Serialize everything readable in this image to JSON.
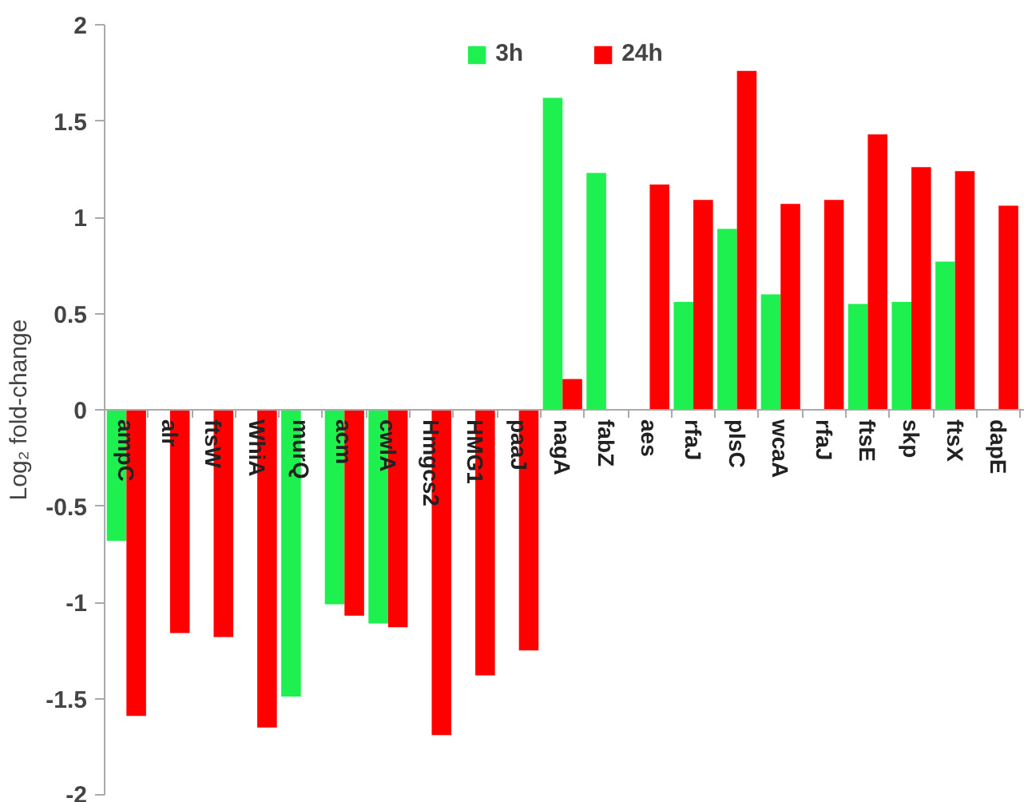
{
  "chart_data": {
    "type": "bar",
    "ylabel": "Log₂ fold-change",
    "categories": [
      "ampC",
      "alr",
      "ftsW",
      "WhiA",
      "murQ",
      "acm",
      "cwlA",
      "Hmgcs2",
      "HMG1",
      "paaJ",
      "nagA",
      "fabZ",
      "aes",
      "rfaJ",
      "plsC",
      "wcaA",
      "rfaJ",
      "ftsE",
      "skp",
      "ftsX",
      "dapE"
    ],
    "series": [
      {
        "name": "3h",
        "color": "#1ef04f",
        "values": [
          -0.68,
          null,
          null,
          null,
          -1.49,
          -1.01,
          -1.11,
          null,
          null,
          null,
          1.62,
          1.23,
          null,
          0.56,
          0.94,
          0.6,
          null,
          0.55,
          0.56,
          0.77,
          null
        ]
      },
      {
        "name": "24h",
        "color": "#ff0000",
        "values": [
          -1.59,
          -1.16,
          -1.18,
          -1.65,
          null,
          -1.07,
          -1.13,
          -1.69,
          -1.38,
          -1.25,
          0.16,
          null,
          1.17,
          1.09,
          1.76,
          1.07,
          1.09,
          1.43,
          1.26,
          1.24,
          1.06
        ]
      }
    ],
    "ylim": [
      -2,
      2
    ],
    "yticks": [
      {
        "value": -2,
        "label": "-2"
      },
      {
        "value": -1.5,
        "label": "-1.5"
      },
      {
        "value": -1,
        "label": "-1"
      },
      {
        "value": -0.5,
        "label": "-0.5"
      },
      0,
      0.5,
      1,
      1.5,
      2
    ],
    "grid": false,
    "legend": "top"
  }
}
